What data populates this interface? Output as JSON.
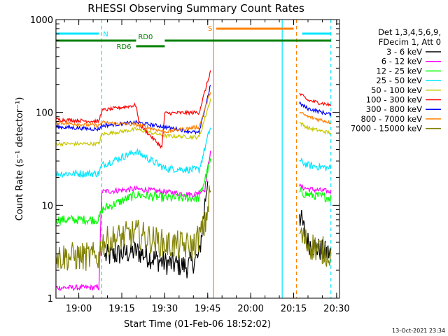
{
  "chart_data": {
    "type": "line",
    "title": "RHESSI Observing Summary Count Rates",
    "xlabel": "Start Time (01-Feb-06 18:52:02)",
    "ylabel": "Count Rate (s⁻¹ detector⁻¹)",
    "y_scale": "log",
    "ylim": [
      1,
      1000
    ],
    "xlim": [
      "18:52:02",
      "20:31:00"
    ],
    "x_ticks": [
      "19:00",
      "19:15",
      "19:30",
      "19:45",
      "20:00",
      "20:15",
      "20:30"
    ],
    "y_ticks": [
      "1",
      "10",
      "100",
      "1000"
    ],
    "legend_header": [
      "Det 1,3,4,5,6,9,",
      "FDecim 1, Att 0"
    ],
    "legend_position": "right",
    "timestamp": "13-Oct-2021 23:34",
    "flag_bars": [
      {
        "label": "N",
        "color": "#00e5ff",
        "segments": [
          [
            "18:52",
            "19:07"
          ],
          [
            "20:18",
            "20:28"
          ]
        ]
      },
      {
        "label": "RD0",
        "color": "#008000",
        "segments": [
          [
            "18:52",
            "19:20"
          ],
          [
            "19:30",
            "20:28"
          ]
        ]
      },
      {
        "label": "RD6",
        "color": "#008000",
        "segments": [
          [
            "19:20",
            "19:30"
          ]
        ]
      },
      {
        "label": "S",
        "color": "#ff8000",
        "segments": [
          [
            "19:48",
            "20:15"
          ]
        ]
      }
    ],
    "markers": [
      {
        "time": "18:52",
        "color": "#00e5ff",
        "style": "solid"
      },
      {
        "time": "19:08",
        "color": "#00e5ff",
        "style": "dashed"
      },
      {
        "time": "19:47",
        "color": "#ff8000",
        "style": "solid"
      },
      {
        "time": "20:11",
        "color": "#00e5ff",
        "style": "solid"
      },
      {
        "time": "20:16",
        "color": "#ff8000",
        "style": "dashed"
      },
      {
        "time": "20:28",
        "color": "#00e5ff",
        "style": "dashed"
      }
    ],
    "series": [
      {
        "name": "3 - 6 keV",
        "color": "#000000",
        "noise": 0.13,
        "points": [
          [
            "19:09",
            2.8
          ],
          [
            "19:20",
            3.2
          ],
          [
            "19:30",
            2.4
          ],
          [
            "19:38",
            2.2
          ],
          [
            "19:42",
            2.8
          ],
          [
            "19:45",
            20
          ],
          [
            "20:17",
            8
          ],
          [
            "20:20",
            4
          ],
          [
            "20:25",
            3.2
          ],
          [
            "20:28",
            3
          ]
        ]
      },
      {
        "name": "6 - 12 keV",
        "color": "#ff00ff",
        "noise": 0.03,
        "points": [
          [
            "18:52",
            1.3
          ],
          [
            "19:07",
            1.3
          ],
          [
            "19:08",
            14
          ],
          [
            "19:20",
            15
          ],
          [
            "19:30",
            14
          ],
          [
            "19:40",
            13
          ],
          [
            "19:44",
            15
          ],
          [
            "19:46",
            40
          ],
          [
            "20:17",
            16
          ],
          [
            "20:20",
            15
          ],
          [
            "20:28",
            14
          ]
        ]
      },
      {
        "name": "12 - 25 keV",
        "color": "#00ff00",
        "noise": 0.05,
        "points": [
          [
            "18:52",
            7
          ],
          [
            "19:07",
            7
          ],
          [
            "19:08",
            9
          ],
          [
            "19:20",
            13
          ],
          [
            "19:30",
            12
          ],
          [
            "19:42",
            12
          ],
          [
            "19:46",
            30
          ],
          [
            "20:17",
            14
          ],
          [
            "20:20",
            13
          ],
          [
            "20:28",
            12
          ]
        ]
      },
      {
        "name": "25 - 50 keV",
        "color": "#00e5ff",
        "noise": 0.04,
        "points": [
          [
            "18:52",
            22
          ],
          [
            "19:07",
            22
          ],
          [
            "19:08",
            27
          ],
          [
            "19:20",
            38
          ],
          [
            "19:30",
            25
          ],
          [
            "19:42",
            24
          ],
          [
            "19:46",
            70
          ],
          [
            "20:17",
            30
          ],
          [
            "20:20",
            27
          ],
          [
            "20:28",
            25
          ]
        ]
      },
      {
        "name": "50 - 100 keV",
        "color": "#c8c800",
        "noise": 0.02,
        "points": [
          [
            "18:52",
            46
          ],
          [
            "19:07",
            46
          ],
          [
            "19:08",
            58
          ],
          [
            "19:20",
            66
          ],
          [
            "19:30",
            56
          ],
          [
            "19:42",
            54
          ],
          [
            "19:46",
            140
          ],
          [
            "20:17",
            78
          ],
          [
            "20:20",
            68
          ],
          [
            "20:28",
            60
          ]
        ]
      },
      {
        "name": "100 - 300 keV",
        "color": "#ff0000",
        "noise": 0.02,
        "points": [
          [
            "18:52",
            84
          ],
          [
            "19:07",
            80
          ],
          [
            "19:08",
            105
          ],
          [
            "19:20",
            120
          ],
          [
            "19:21",
            75
          ],
          [
            "19:29",
            42
          ],
          [
            "19:30",
            98
          ],
          [
            "19:42",
            100
          ],
          [
            "19:46",
            280
          ],
          [
            "20:17",
            160
          ],
          [
            "20:20",
            135
          ],
          [
            "20:28",
            120
          ]
        ]
      },
      {
        "name": "300 - 800 keV",
        "color": "#0000ff",
        "noise": 0.02,
        "points": [
          [
            "18:52",
            70
          ],
          [
            "19:07",
            66
          ],
          [
            "19:08",
            72
          ],
          [
            "19:20",
            78
          ],
          [
            "19:30",
            70
          ],
          [
            "19:42",
            60
          ],
          [
            "19:46",
            200
          ],
          [
            "20:17",
            125
          ],
          [
            "20:20",
            110
          ],
          [
            "20:28",
            95
          ]
        ]
      },
      {
        "name": "800 - 7000 keV",
        "color": "#ff8000",
        "noise": 0.02,
        "points": [
          [
            "18:52",
            78
          ],
          [
            "19:07",
            72
          ],
          [
            "19:08",
            78
          ],
          [
            "19:20",
            74
          ],
          [
            "19:30",
            62
          ],
          [
            "19:42",
            70
          ],
          [
            "19:46",
            170
          ],
          [
            "20:17",
            100
          ],
          [
            "20:20",
            90
          ],
          [
            "20:28",
            78
          ]
        ]
      },
      {
        "name": "7000 - 15000 keV",
        "color": "#808000",
        "noise": 0.16,
        "points": [
          [
            "18:52",
            2.8
          ],
          [
            "19:07",
            2.8
          ],
          [
            "19:08",
            4
          ],
          [
            "19:20",
            5
          ],
          [
            "19:30",
            3.8
          ],
          [
            "19:40",
            3.6
          ],
          [
            "19:44",
            6
          ],
          [
            "19:46",
            15
          ],
          [
            "20:17",
            5
          ],
          [
            "20:20",
            3.8
          ],
          [
            "20:28",
            3
          ]
        ]
      }
    ]
  }
}
